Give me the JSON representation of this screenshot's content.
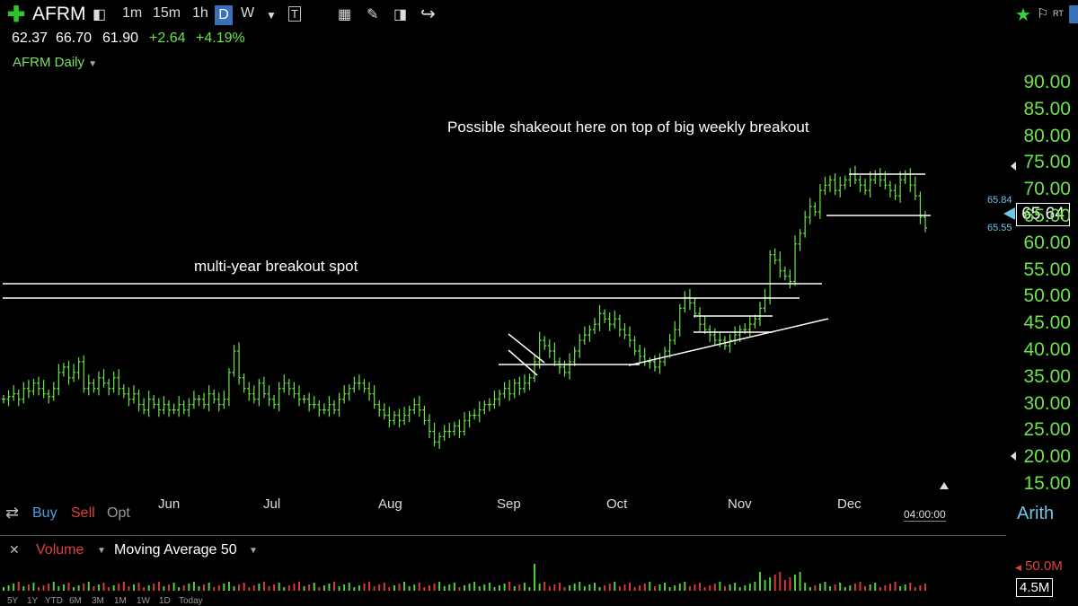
{
  "toolbar": {
    "symbol": "AFRM",
    "intervals": [
      "1m",
      "15m",
      "1h",
      "D",
      "W"
    ],
    "active_interval": "D"
  },
  "quote": {
    "open": "62.37",
    "high": "66.70",
    "low": "61.90",
    "change": "+2.64",
    "change_pct": "+4.19%"
  },
  "chart_title": "AFRM Daily",
  "last_price": "65.64",
  "bid": "65.84",
  "ask": "65.55",
  "scale_mode": "Arith",
  "time_readout": "04:00:00",
  "trade_buttons": {
    "buy": "Buy",
    "sell": "Sell",
    "opt": "Opt"
  },
  "volume_panel": {
    "label": "Volume",
    "study": "Moving Average 50",
    "max_label": "50.0M",
    "current": "4.5M"
  },
  "range_buttons": [
    "5Y",
    "1Y",
    "YTD",
    "6M",
    "3M",
    "1M",
    "1W",
    "1D",
    "Today"
  ],
  "annotations": {
    "top": "Possible shakeout here on top of big weekly breakout",
    "left": "multi-year breakout spot"
  },
  "colors": {
    "up": "#6ce34a",
    "down": "#6ce34a",
    "accent": "#3b6fb8",
    "sell": "#e04040",
    "buy": "#4a9de0"
  },
  "chart_data": {
    "type": "ohlc",
    "y_ticks": [
      90,
      85,
      80,
      75,
      70,
      65,
      60,
      55,
      50,
      45,
      40,
      35,
      30,
      25,
      20,
      15
    ],
    "y_tick_labels": [
      "90.00",
      "85.00",
      "80.00",
      "75.00",
      "70.00",
      "65.00",
      "60.00",
      "55.00",
      "50.00",
      "45.00",
      "40.00",
      "35.00",
      "30.00",
      "25.00",
      "20.00",
      "15.00"
    ],
    "ylim": [
      15,
      90
    ],
    "x_labels": [
      "Jun",
      "Jul",
      "Aug",
      "Sep",
      "Oct",
      "Nov",
      "Dec"
    ],
    "closes": [
      31,
      31.5,
      32,
      31,
      33,
      32.5,
      34,
      33,
      32,
      31.5,
      33,
      36,
      37,
      35,
      36,
      38,
      33,
      34,
      33,
      35,
      34,
      33,
      35,
      33,
      32,
      31,
      32,
      30,
      29,
      31,
      30,
      29,
      30,
      29,
      29,
      30,
      29,
      30,
      31,
      31,
      30,
      32,
      31,
      30,
      31,
      36,
      40,
      35,
      33,
      32,
      31,
      34,
      32,
      31,
      30,
      33,
      34,
      33,
      32,
      31,
      31,
      30,
      30,
      29,
      29,
      30,
      29,
      31,
      32,
      33,
      34,
      34,
      33,
      32,
      30,
      29,
      28,
      27,
      28,
      27,
      28,
      29,
      30,
      29,
      27,
      25,
      23,
      24,
      25,
      25,
      26,
      25,
      27,
      28,
      28,
      29,
      30,
      30,
      31,
      32,
      33,
      32,
      34,
      33,
      34,
      35,
      38,
      42,
      41,
      40,
      38,
      37,
      36,
      38,
      40,
      42,
      43,
      44,
      45,
      47,
      46,
      45,
      46,
      44,
      43,
      42,
      40,
      39,
      38,
      38,
      37,
      38,
      40,
      42,
      44,
      48,
      50,
      49,
      47,
      45,
      44,
      43,
      42,
      42,
      41,
      42,
      43,
      44,
      44,
      45,
      46,
      48,
      50,
      58,
      57,
      55,
      54,
      53,
      60,
      62,
      65,
      67,
      66,
      70,
      71,
      72,
      70,
      71,
      72,
      73,
      72,
      71,
      70,
      72,
      73,
      72,
      71,
      70,
      69,
      72,
      73,
      71,
      69,
      65,
      63
    ]
  }
}
